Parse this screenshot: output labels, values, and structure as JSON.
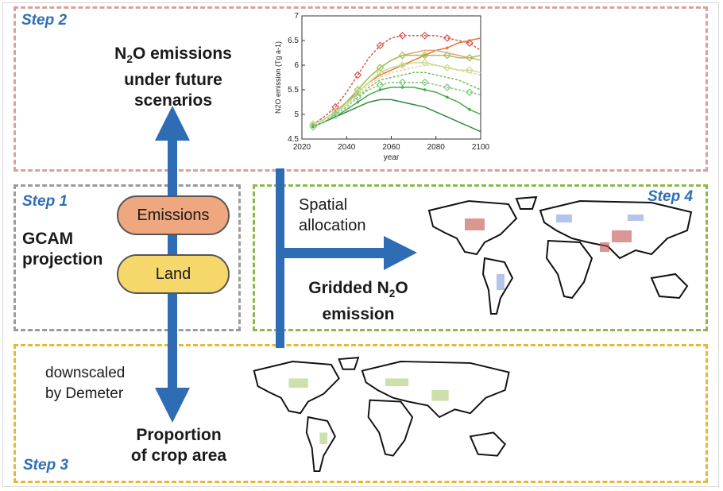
{
  "steps": {
    "step1": "Step 1",
    "step2": "Step 2",
    "step3": "Step 3",
    "step4": "Step 4"
  },
  "labels": {
    "future_line1_pre": "N",
    "future_line1_sub": "2",
    "future_line1_post": "O emissions",
    "future_line2": "under future",
    "future_line3": "scenarios",
    "gcam_line1": "GCAM",
    "gcam_line2": "projection",
    "emissions": "Emissions",
    "land": "Land",
    "spatial_line1": "Spatial",
    "spatial_line2": "allocation",
    "gridded_line1_pre": "Gridded N",
    "gridded_line1_sub": "2",
    "gridded_line1_post": "O",
    "gridded_line2": "emission",
    "downscaled_line1": "downscaled",
    "downscaled_line2": "by Demeter",
    "proportion_line1": "Proportion",
    "proportion_line2": "of crop area"
  },
  "colors": {
    "step2_border": "#d9a19a",
    "step1_border": "#9b9b9b",
    "step4_border": "#8fb84a",
    "step3_border": "#e5b83a",
    "arrow": "#2e6db4",
    "emissions_fill": "#eea77e",
    "land_fill": "#f6d76a",
    "step_text": "#2f6fb3"
  },
  "chart_data": {
    "type": "line",
    "xlabel": "year",
    "ylabel": "N2O emission (Tg a-1)",
    "xlim": [
      2020,
      2100
    ],
    "ylim": [
      4.5,
      7
    ],
    "xticks": [
      2020,
      2040,
      2060,
      2080,
      2100
    ],
    "yticks": [
      4.5,
      5,
      5.5,
      6,
      6.5,
      7
    ],
    "x": [
      2025,
      2030,
      2035,
      2040,
      2045,
      2050,
      2055,
      2060,
      2065,
      2070,
      2075,
      2080,
      2085,
      2090,
      2095,
      2100
    ],
    "series": [
      {
        "color": "#d9534f",
        "marker": "diamond",
        "values": [
          4.8,
          4.95,
          5.15,
          5.45,
          5.8,
          6.15,
          6.4,
          6.55,
          6.6,
          6.6,
          6.6,
          6.6,
          6.55,
          6.5,
          6.45,
          6.3
        ]
      },
      {
        "color": "#e0763a",
        "marker": "dot",
        "values": [
          4.8,
          4.9,
          5.05,
          5.25,
          5.45,
          5.65,
          5.8,
          5.9,
          6.0,
          6.1,
          6.2,
          6.3,
          6.35,
          6.45,
          6.5,
          6.55
        ]
      },
      {
        "color": "#e9a36e",
        "marker": "none",
        "values": [
          4.8,
          4.9,
          5.05,
          5.25,
          5.5,
          5.75,
          5.95,
          6.1,
          6.2,
          6.25,
          6.3,
          6.3,
          6.25,
          6.2,
          6.15,
          6.1
        ]
      },
      {
        "color": "#f2c9a4",
        "marker": "none",
        "values": [
          4.8,
          4.9,
          5.0,
          5.2,
          5.4,
          5.6,
          5.75,
          5.85,
          5.9,
          5.95,
          6.0,
          6.0,
          5.95,
          5.9,
          5.85,
          5.8
        ]
      },
      {
        "color": "#9cc25b",
        "marker": "diamond",
        "values": [
          4.8,
          4.9,
          5.05,
          5.25,
          5.5,
          5.75,
          5.95,
          6.1,
          6.2,
          6.2,
          6.2,
          6.2,
          6.2,
          6.15,
          6.15,
          6.2
        ]
      },
      {
        "color": "#c9dc8c",
        "marker": "diamond",
        "values": [
          4.8,
          4.9,
          5.05,
          5.2,
          5.45,
          5.65,
          5.85,
          5.95,
          6.0,
          6.05,
          6.05,
          6.0,
          5.95,
          5.9,
          5.9,
          5.85
        ]
      },
      {
        "color": "#6fbf5b",
        "marker": "none",
        "values": [
          4.75,
          4.85,
          5.0,
          5.15,
          5.35,
          5.55,
          5.7,
          5.75,
          5.8,
          5.85,
          5.85,
          5.8,
          5.75,
          5.7,
          5.6,
          5.5
        ]
      },
      {
        "color": "#4aa84a",
        "marker": "dot",
        "values": [
          4.75,
          4.85,
          4.95,
          5.1,
          5.25,
          5.4,
          5.5,
          5.55,
          5.55,
          5.55,
          5.5,
          5.45,
          5.35,
          5.25,
          5.1,
          5.0
        ]
      },
      {
        "color": "#2e8b3e",
        "marker": "none",
        "values": [
          4.75,
          4.85,
          4.95,
          5.05,
          5.15,
          5.25,
          5.3,
          5.3,
          5.25,
          5.2,
          5.15,
          5.05,
          4.95,
          4.85,
          4.75,
          4.65
        ]
      },
      {
        "color": "#7fc97f",
        "marker": "diamond",
        "values": [
          4.75,
          4.85,
          5.0,
          5.15,
          5.35,
          5.5,
          5.6,
          5.65,
          5.65,
          5.65,
          5.65,
          5.6,
          5.55,
          5.5,
          5.45,
          5.4
        ]
      }
    ]
  }
}
